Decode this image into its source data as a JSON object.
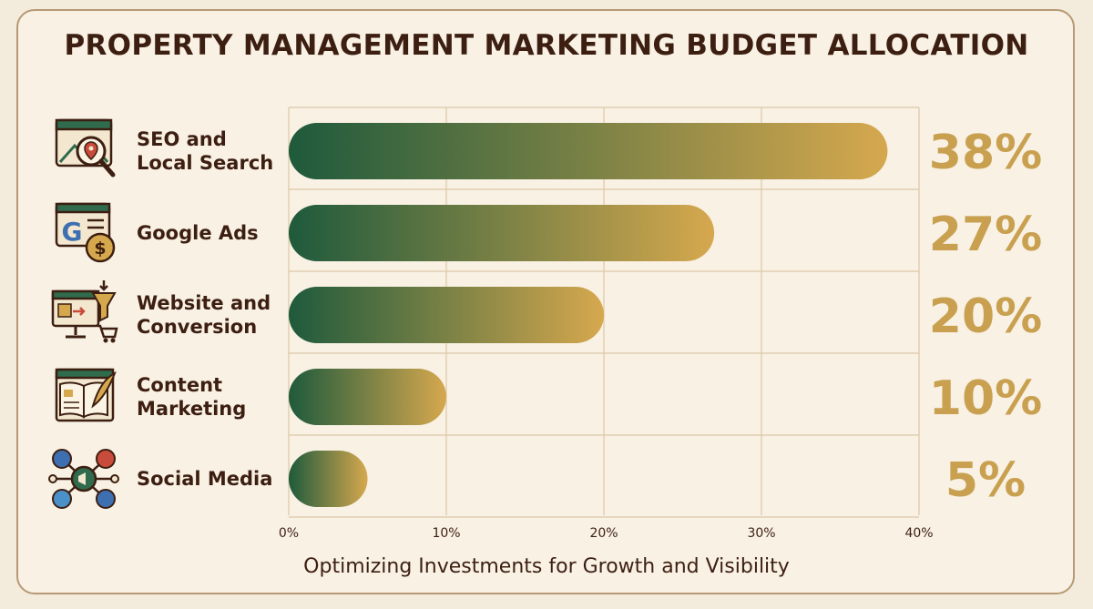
{
  "colors": {
    "bar_start": "#1e5a3c",
    "bar_end": "#d6a84e",
    "percent_text": "#c9a04f",
    "text": "#3d1f12",
    "grid": "#dcc8a6",
    "background": "#f8f1e4"
  },
  "chart_data": {
    "type": "bar",
    "orientation": "horizontal",
    "title": "PROPERTY MANAGEMENT MARKETING BUDGET ALLOCATION",
    "subtitle": "Optimizing Investments for Growth and Visibility",
    "categories": [
      {
        "lines": [
          "SEO and",
          "Local Search"
        ],
        "icon": "seo-search-icon"
      },
      {
        "lines": [
          "Google Ads"
        ],
        "icon": "google-ads-icon"
      },
      {
        "lines": [
          "Website and",
          "Conversion"
        ],
        "icon": "website-funnel-icon"
      },
      {
        "lines": [
          "Content",
          "Marketing"
        ],
        "icon": "content-book-icon"
      },
      {
        "lines": [
          "Social Media"
        ],
        "icon": "social-network-icon"
      }
    ],
    "values": [
      38,
      27,
      20,
      10,
      5
    ],
    "value_labels": [
      "38%",
      "27%",
      "20%",
      "10%",
      "5%"
    ],
    "xlim": [
      0,
      40
    ],
    "xticks": [
      0,
      10,
      20,
      30,
      40
    ],
    "xtick_labels": [
      "0%",
      "10%",
      "20%",
      "30%",
      "40%"
    ],
    "grid": true,
    "legend": "none"
  }
}
